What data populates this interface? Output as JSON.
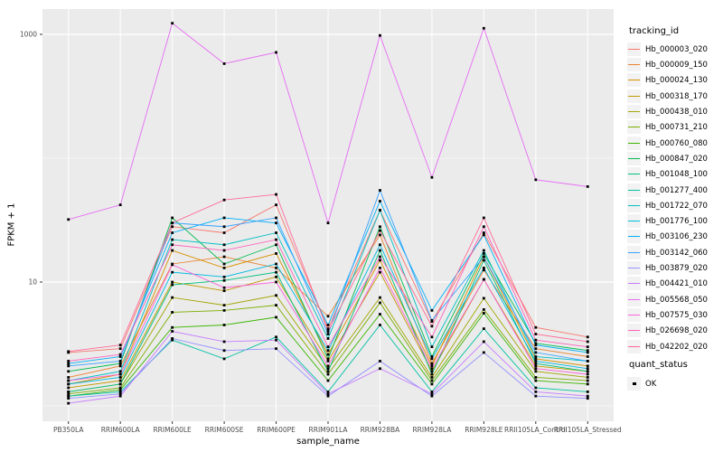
{
  "chart_data": {
    "type": "line",
    "xlabel": "sample_name",
    "ylabel": "FPKM + 1",
    "y_scale": "log10",
    "y_ticks": [
      10,
      1000
    ],
    "y_minor_gridlines": [
      1,
      100
    ],
    "ylim": [
      0.75,
      1600
    ],
    "grid": "on",
    "legend_position": "right",
    "point_marker": "black-square",
    "categories": [
      "PB350LA",
      "RRIM600LA",
      "RRIM600LE",
      "RRIM600SE",
      "RRIM600PE",
      "RRIM901LA",
      "RRIM928BA",
      "RRIM928LA",
      "RRIM928LE",
      "RRII105LA_Control",
      "RRII105LA_Stressed"
    ],
    "series": [
      {
        "name": "Hb_000003_020",
        "color": "#F8766D",
        "values": [
          2.7,
          2.9,
          28,
          25,
          42,
          4.2,
          38,
          4.8,
          25,
          4.3,
          3.6
        ]
      },
      {
        "name": "Hb_000009_150",
        "color": "#EA8331",
        "values": [
          1.7,
          2.1,
          14,
          16,
          13,
          5.3,
          24,
          2.2,
          12.5,
          2.9,
          2.5
        ]
      },
      {
        "name": "Hb_000024_130",
        "color": "#D89000",
        "values": [
          1.5,
          1.8,
          18,
          13,
          17,
          2.6,
          15,
          2.1,
          16,
          2.4,
          2.1
        ]
      },
      {
        "name": "Hb_000318_170",
        "color": "#C09B00",
        "values": [
          1.4,
          1.6,
          10,
          8.5,
          11,
          2.3,
          12,
          1.9,
          10.5,
          2.1,
          1.9
        ]
      },
      {
        "name": "Hb_000438_010",
        "color": "#A3A500",
        "values": [
          1.3,
          1.5,
          7.5,
          6.5,
          7.8,
          2.0,
          7.5,
          1.7,
          7.4,
          1.9,
          1.7
        ]
      },
      {
        "name": "Hb_000731_210",
        "color": "#7CAE00",
        "values": [
          1.25,
          1.4,
          5.7,
          5.9,
          6.5,
          1.8,
          6.8,
          1.6,
          6.0,
          1.7,
          1.6
        ]
      },
      {
        "name": "Hb_000760_080",
        "color": "#39B600",
        "values": [
          1.2,
          1.35,
          4.3,
          4.5,
          5.2,
          1.6,
          5.5,
          1.5,
          5.6,
          1.6,
          1.5
        ]
      },
      {
        "name": "Hb_000847_020",
        "color": "#00BB4E",
        "values": [
          1.9,
          2.2,
          33,
          14,
          20,
          2.4,
          28,
          2.5,
          17,
          3.2,
          2.8
        ]
      },
      {
        "name": "Hb_001048_100",
        "color": "#00BF7D",
        "values": [
          1.3,
          1.5,
          9.5,
          10.3,
          12,
          1.9,
          18,
          1.8,
          15,
          2.2,
          1.9
        ]
      },
      {
        "name": "Hb_001277_400",
        "color": "#00C1A3",
        "values": [
          1.2,
          1.3,
          3.4,
          2.4,
          3.6,
          1.3,
          4.5,
          1.3,
          4.2,
          1.4,
          1.3
        ]
      },
      {
        "name": "Hb_001722_070",
        "color": "#00BFC4",
        "values": [
          1.6,
          1.9,
          22,
          20,
          25,
          3.5,
          38,
          3.0,
          18,
          2.5,
          2.3
        ]
      },
      {
        "name": "Hb_001776_100",
        "color": "#00BAE0",
        "values": [
          1.5,
          1.7,
          12,
          11,
          14,
          2.8,
          20,
          2.4,
          13,
          2.3,
          2.0
        ]
      },
      {
        "name": "Hb_003106_230",
        "color": "#00B0F6",
        "values": [
          2.2,
          2.5,
          25,
          33,
          30,
          4.5,
          45,
          5.9,
          24,
          3.1,
          2.7
        ]
      },
      {
        "name": "Hb_003142_060",
        "color": "#35A2FF",
        "values": [
          2.1,
          2.3,
          30,
          28,
          33,
          3.8,
          55,
          4.9,
          16,
          2.7,
          2.3
        ]
      },
      {
        "name": "Hb_003879_020",
        "color": "#9590FF",
        "values": [
          1.15,
          1.25,
          3.5,
          2.8,
          2.9,
          1.2,
          2.3,
          1.2,
          2.7,
          1.2,
          1.15
        ]
      },
      {
        "name": "Hb_004421_010",
        "color": "#C77CFF",
        "values": [
          1.05,
          1.2,
          4.0,
          3.3,
          3.4,
          1.25,
          2.0,
          1.25,
          3.3,
          1.3,
          1.2
        ]
      },
      {
        "name": "Hb_005568_050",
        "color": "#E76BF3",
        "values": [
          32,
          42,
          1230,
          580,
          715,
          30,
          980,
          70,
          1120,
          67,
          59
        ]
      },
      {
        "name": "Hb_007575_030",
        "color": "#FA62DB",
        "values": [
          1.6,
          1.8,
          13.8,
          9.0,
          10,
          2.1,
          13,
          2.0,
          10.5,
          2.0,
          1.8
        ]
      },
      {
        "name": "Hb_026698_020",
        "color": "#FF62BC",
        "values": [
          2.3,
          2.6,
          20,
          18,
          22,
          3.0,
          16,
          3.6,
          28,
          3.4,
          3.0
        ]
      },
      {
        "name": "Hb_042202_020",
        "color": "#FF6A98",
        "values": [
          2.75,
          3.1,
          30,
          46,
          51,
          4.0,
          26,
          4.4,
          33,
          3.8,
          3.3
        ]
      }
    ],
    "legend": {
      "tracking_title": "tracking_id",
      "quant_title": "quant_status",
      "quant_items": [
        {
          "label": "OK"
        }
      ]
    }
  },
  "theme": {
    "panel_bg": "#EBEBEB",
    "grid_color": "#FFFFFF",
    "tick_color": "#333333",
    "tick_label_color": "#4D4D4D",
    "point_color": "#000000",
    "legend_key_bg": "#F2F2F2"
  }
}
